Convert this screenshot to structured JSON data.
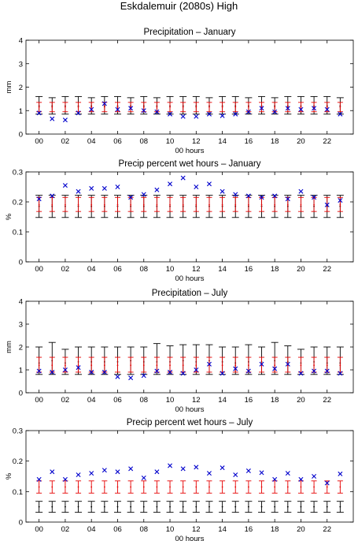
{
  "figure": {
    "title": "Eskdalemuir (2080s) High"
  },
  "colors": {
    "observed": "#0000cc",
    "red_series": "#e60000",
    "black_series": "#000000",
    "axis": "#000000"
  },
  "chart_data": [
    {
      "type": "scatter",
      "title": "Precipitation – January",
      "xlabel": "00 hours",
      "ylabel": "mm",
      "xlim": [
        -1,
        24
      ],
      "ylim": [
        0,
        4
      ],
      "xticks": [
        "00",
        "02",
        "04",
        "06",
        "08",
        "10",
        "12",
        "14",
        "16",
        "18",
        "20",
        "22"
      ],
      "yticks": [
        "0",
        "1",
        "2",
        "3",
        "4"
      ],
      "x": [
        0,
        1,
        2,
        3,
        4,
        5,
        6,
        7,
        8,
        9,
        10,
        11,
        12,
        13,
        14,
        15,
        16,
        17,
        18,
        19,
        20,
        21,
        22,
        23
      ],
      "observed": [
        0.9,
        0.65,
        0.6,
        0.9,
        1.05,
        1.3,
        1.05,
        1.1,
        1.0,
        0.95,
        0.85,
        0.75,
        0.75,
        0.85,
        0.78,
        0.85,
        0.95,
        1.1,
        0.95,
        1.1,
        1.05,
        1.1,
        1.05,
        0.85
      ],
      "red_series": {
        "center": [
          1.15,
          1.15,
          1.15,
          1.15,
          1.15,
          1.15,
          1.15,
          1.15,
          1.15,
          1.15,
          1.15,
          1.15,
          1.15,
          1.15,
          1.15,
          1.15,
          1.15,
          1.15,
          1.15,
          1.15,
          1.15,
          1.15,
          1.15,
          1.15
        ],
        "low": [
          0.95,
          0.95,
          0.95,
          0.95,
          0.95,
          0.95,
          0.95,
          0.95,
          0.95,
          0.95,
          0.95,
          0.95,
          0.95,
          0.95,
          0.95,
          0.95,
          0.95,
          0.95,
          0.95,
          0.95,
          0.95,
          0.95,
          0.95,
          0.95
        ],
        "high": [
          1.35,
          1.35,
          1.35,
          1.35,
          1.35,
          1.35,
          1.35,
          1.35,
          1.35,
          1.35,
          1.35,
          1.35,
          1.35,
          1.35,
          1.35,
          1.35,
          1.35,
          1.35,
          1.35,
          1.35,
          1.35,
          1.35,
          1.35,
          1.35
        ]
      },
      "black_series": {
        "center": [
          1.2,
          1.2,
          1.2,
          1.2,
          1.2,
          1.2,
          1.2,
          1.2,
          1.2,
          1.2,
          1.2,
          1.2,
          1.2,
          1.2,
          1.2,
          1.2,
          1.2,
          1.2,
          1.2,
          1.2,
          1.2,
          1.2,
          1.2,
          1.2
        ],
        "low": [
          0.85,
          0.85,
          0.85,
          0.85,
          0.85,
          0.85,
          0.85,
          0.85,
          0.85,
          0.85,
          0.85,
          0.85,
          0.85,
          0.85,
          0.85,
          0.85,
          0.85,
          0.85,
          0.85,
          0.85,
          0.85,
          0.85,
          0.85,
          0.85
        ],
        "high": [
          1.6,
          1.55,
          1.6,
          1.6,
          1.55,
          1.6,
          1.6,
          1.55,
          1.6,
          1.55,
          1.6,
          1.6,
          1.6,
          1.55,
          1.6,
          1.6,
          1.55,
          1.6,
          1.55,
          1.6,
          1.6,
          1.6,
          1.6,
          1.55
        ]
      }
    },
    {
      "type": "scatter",
      "title": "Precip percent wet hours – January",
      "xlabel": "00 hours",
      "ylabel": "%",
      "xlim": [
        -1,
        24
      ],
      "ylim": [
        0,
        0.3
      ],
      "xticks": [
        "00",
        "02",
        "04",
        "06",
        "08",
        "10",
        "12",
        "14",
        "16",
        "18",
        "20",
        "22"
      ],
      "yticks": [
        "0",
        "0.1",
        "0.2",
        "0.3"
      ],
      "x": [
        0,
        1,
        2,
        3,
        4,
        5,
        6,
        7,
        8,
        9,
        10,
        11,
        12,
        13,
        14,
        15,
        16,
        17,
        18,
        19,
        20,
        21,
        22,
        23
      ],
      "observed": [
        0.21,
        0.22,
        0.255,
        0.235,
        0.245,
        0.245,
        0.25,
        0.215,
        0.225,
        0.24,
        0.26,
        0.28,
        0.25,
        0.26,
        0.235,
        0.225,
        0.22,
        0.215,
        0.22,
        0.21,
        0.235,
        0.215,
        0.19,
        0.205
      ],
      "red_series": {
        "center": [
          0.19,
          0.19,
          0.19,
          0.19,
          0.19,
          0.19,
          0.19,
          0.19,
          0.19,
          0.19,
          0.19,
          0.19,
          0.19,
          0.19,
          0.19,
          0.19,
          0.19,
          0.19,
          0.19,
          0.19,
          0.19,
          0.19,
          0.19,
          0.19
        ],
        "low": [
          0.168,
          0.168,
          0.168,
          0.168,
          0.168,
          0.168,
          0.168,
          0.168,
          0.168,
          0.168,
          0.168,
          0.168,
          0.168,
          0.168,
          0.168,
          0.168,
          0.168,
          0.168,
          0.168,
          0.168,
          0.168,
          0.168,
          0.168,
          0.168
        ],
        "high": [
          0.215,
          0.215,
          0.215,
          0.215,
          0.215,
          0.215,
          0.215,
          0.215,
          0.215,
          0.215,
          0.215,
          0.215,
          0.215,
          0.215,
          0.215,
          0.215,
          0.215,
          0.215,
          0.215,
          0.215,
          0.215,
          0.215,
          0.215,
          0.215
        ]
      },
      "black_series": {
        "center": [
          0.185,
          0.185,
          0.185,
          0.185,
          0.185,
          0.185,
          0.185,
          0.185,
          0.185,
          0.185,
          0.185,
          0.185,
          0.185,
          0.185,
          0.185,
          0.185,
          0.185,
          0.185,
          0.185,
          0.185,
          0.185,
          0.185,
          0.185,
          0.185
        ],
        "low": [
          0.148,
          0.148,
          0.148,
          0.148,
          0.148,
          0.148,
          0.148,
          0.148,
          0.148,
          0.148,
          0.148,
          0.148,
          0.148,
          0.148,
          0.148,
          0.148,
          0.148,
          0.148,
          0.148,
          0.148,
          0.148,
          0.148,
          0.148,
          0.148
        ],
        "high": [
          0.222,
          0.222,
          0.222,
          0.222,
          0.222,
          0.222,
          0.222,
          0.222,
          0.222,
          0.222,
          0.222,
          0.222,
          0.222,
          0.222,
          0.222,
          0.222,
          0.222,
          0.222,
          0.222,
          0.222,
          0.222,
          0.222,
          0.222,
          0.222
        ]
      }
    },
    {
      "type": "scatter",
      "title": "Precipitation – July",
      "xlabel": "00 hours",
      "ylabel": "mm",
      "xlim": [
        -1,
        24
      ],
      "ylim": [
        0,
        4
      ],
      "xticks": [
        "00",
        "02",
        "04",
        "06",
        "08",
        "10",
        "12",
        "14",
        "16",
        "18",
        "20",
        "22"
      ],
      "yticks": [
        "0",
        "1",
        "2",
        "3",
        "4"
      ],
      "x": [
        0,
        1,
        2,
        3,
        4,
        5,
        6,
        7,
        8,
        9,
        10,
        11,
        12,
        13,
        14,
        15,
        16,
        17,
        18,
        19,
        20,
        21,
        22,
        23
      ],
      "observed": [
        0.95,
        0.9,
        1.0,
        1.1,
        0.9,
        0.9,
        0.7,
        0.65,
        0.75,
        0.95,
        0.9,
        0.85,
        1.0,
        1.25,
        0.85,
        1.05,
        0.95,
        1.25,
        1.05,
        1.25,
        0.85,
        0.95,
        0.95,
        0.85
      ],
      "red_series": {
        "center": [
          1.2,
          1.2,
          1.2,
          1.2,
          1.2,
          1.2,
          1.2,
          1.2,
          1.2,
          1.2,
          1.2,
          1.2,
          1.2,
          1.2,
          1.2,
          1.2,
          1.2,
          1.2,
          1.2,
          1.2,
          1.2,
          1.2,
          1.2,
          1.2
        ],
        "low": [
          0.9,
          0.9,
          0.9,
          0.9,
          0.9,
          0.9,
          0.9,
          0.9,
          0.9,
          0.9,
          0.9,
          0.9,
          0.9,
          0.9,
          0.9,
          0.9,
          0.9,
          0.9,
          0.9,
          0.9,
          0.9,
          0.9,
          0.9,
          0.9
        ],
        "high": [
          1.55,
          1.55,
          1.55,
          1.55,
          1.55,
          1.55,
          1.55,
          1.55,
          1.55,
          1.55,
          1.55,
          1.55,
          1.55,
          1.55,
          1.55,
          1.55,
          1.55,
          1.55,
          1.55,
          1.55,
          1.55,
          1.55,
          1.55,
          1.55
        ]
      },
      "black_series": {
        "center": [
          1.3,
          1.4,
          1.3,
          1.35,
          1.35,
          1.35,
          1.35,
          1.4,
          1.35,
          1.35,
          1.35,
          1.4,
          1.35,
          1.4,
          1.35,
          1.3,
          1.35,
          1.35,
          1.4,
          1.35,
          1.3,
          1.35,
          1.3,
          1.3
        ],
        "low": [
          0.8,
          0.8,
          0.8,
          0.8,
          0.8,
          0.8,
          0.8,
          0.8,
          0.8,
          0.8,
          0.8,
          0.8,
          0.8,
          0.8,
          0.8,
          0.8,
          0.8,
          0.8,
          0.8,
          0.8,
          0.8,
          0.8,
          0.8,
          0.8
        ],
        "high": [
          2.0,
          2.2,
          1.9,
          2.0,
          2.0,
          2.0,
          2.0,
          2.0,
          2.0,
          2.15,
          2.05,
          2.1,
          2.1,
          2.1,
          2.0,
          2.0,
          2.1,
          2.0,
          2.2,
          2.05,
          1.9,
          2.0,
          2.0,
          2.0
        ]
      }
    },
    {
      "type": "scatter",
      "title": "Precip percent wet hours – July",
      "xlabel": "00 hours",
      "ylabel": "%",
      "xlim": [
        -1,
        24
      ],
      "ylim": [
        0,
        0.3
      ],
      "xticks": [
        "00",
        "02",
        "04",
        "06",
        "08",
        "10",
        "12",
        "14",
        "16",
        "18",
        "20",
        "22"
      ],
      "yticks": [
        "0",
        "0.1",
        "0.2",
        "0.3"
      ],
      "x": [
        0,
        1,
        2,
        3,
        4,
        5,
        6,
        7,
        8,
        9,
        10,
        11,
        12,
        13,
        14,
        15,
        16,
        17,
        18,
        19,
        20,
        21,
        22,
        23
      ],
      "observed": [
        0.14,
        0.165,
        0.14,
        0.155,
        0.16,
        0.17,
        0.165,
        0.175,
        0.145,
        0.165,
        0.185,
        0.175,
        0.18,
        0.16,
        0.178,
        0.155,
        0.168,
        0.162,
        0.14,
        0.16,
        0.14,
        0.15,
        0.128,
        0.158
      ],
      "red_series": {
        "center": [
          0.115,
          0.115,
          0.115,
          0.115,
          0.115,
          0.115,
          0.115,
          0.115,
          0.115,
          0.115,
          0.115,
          0.115,
          0.115,
          0.115,
          0.115,
          0.115,
          0.115,
          0.115,
          0.115,
          0.115,
          0.115,
          0.115,
          0.115,
          0.115
        ],
        "low": [
          0.095,
          0.095,
          0.095,
          0.095,
          0.095,
          0.095,
          0.095,
          0.095,
          0.095,
          0.095,
          0.095,
          0.095,
          0.095,
          0.095,
          0.095,
          0.095,
          0.095,
          0.095,
          0.095,
          0.095,
          0.095,
          0.095,
          0.095,
          0.095
        ],
        "high": [
          0.135,
          0.135,
          0.135,
          0.135,
          0.135,
          0.135,
          0.135,
          0.135,
          0.135,
          0.135,
          0.135,
          0.135,
          0.135,
          0.135,
          0.135,
          0.135,
          0.135,
          0.135,
          0.135,
          0.135,
          0.135,
          0.135,
          0.135,
          0.135
        ]
      },
      "black_series": {
        "center": [
          0.05,
          0.05,
          0.05,
          0.05,
          0.05,
          0.05,
          0.05,
          0.05,
          0.05,
          0.05,
          0.05,
          0.05,
          0.05,
          0.05,
          0.05,
          0.05,
          0.05,
          0.05,
          0.05,
          0.05,
          0.05,
          0.05,
          0.05,
          0.05
        ],
        "low": [
          0.032,
          0.032,
          0.032,
          0.032,
          0.032,
          0.032,
          0.032,
          0.032,
          0.032,
          0.032,
          0.032,
          0.032,
          0.032,
          0.032,
          0.032,
          0.032,
          0.032,
          0.032,
          0.032,
          0.032,
          0.032,
          0.032,
          0.032,
          0.032
        ],
        "high": [
          0.068,
          0.068,
          0.068,
          0.068,
          0.068,
          0.068,
          0.068,
          0.068,
          0.068,
          0.068,
          0.068,
          0.068,
          0.068,
          0.068,
          0.068,
          0.068,
          0.068,
          0.068,
          0.068,
          0.068,
          0.068,
          0.068,
          0.068,
          0.068
        ]
      }
    }
  ]
}
